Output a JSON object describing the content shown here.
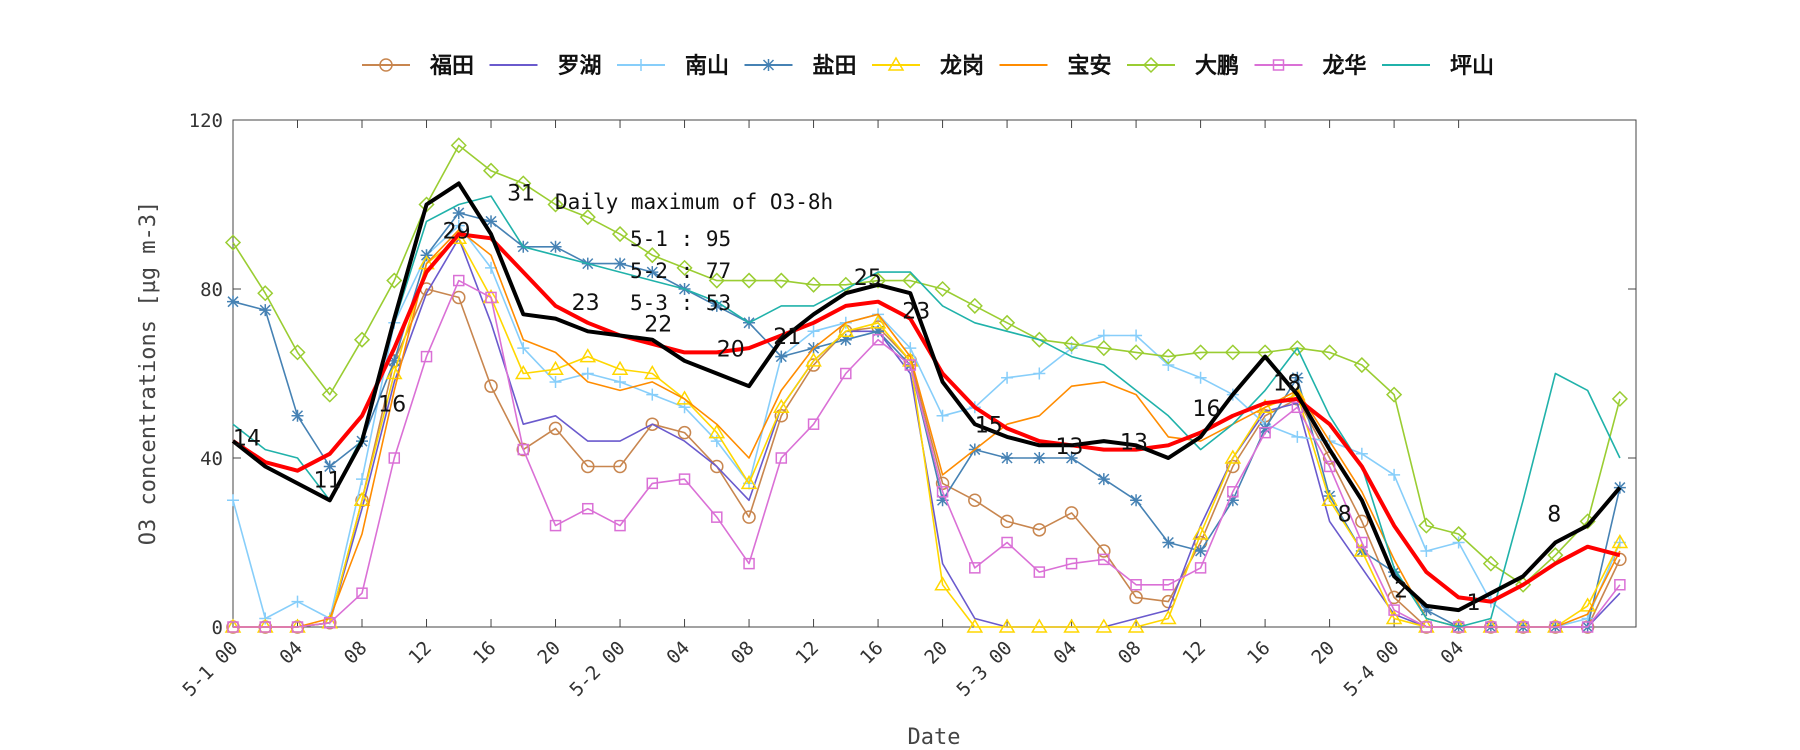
{
  "chart_data": {
    "type": "line",
    "xlabel": "Date",
    "ylabel": "O3 concentrations [µg m-3]",
    "ylim": [
      0,
      120
    ],
    "yticks": [
      0,
      40,
      80,
      120
    ],
    "x_hours": [
      0,
      2,
      4,
      6,
      8,
      10,
      12,
      14,
      16,
      18,
      20,
      22,
      24,
      26,
      28,
      30,
      32,
      34,
      36,
      38,
      40,
      42,
      44,
      46,
      48,
      50,
      52,
      54,
      56,
      58,
      60,
      62,
      64,
      66,
      68,
      70,
      72,
      74,
      76,
      78,
      80,
      82,
      84,
      86
    ],
    "xtick_labels": [
      "5-1 00",
      "04",
      "08",
      "12",
      "16",
      "20",
      "5-2 00",
      "04",
      "08",
      "12",
      "16",
      "20",
      "5-3 00",
      "04",
      "08",
      "12",
      "16",
      "20",
      "5-4 00",
      "04"
    ],
    "grid": false,
    "legend_position": "top",
    "annotation": {
      "title": "Daily maximum of O3-8h",
      "lines": [
        "5-1 : 95",
        "5-2 : 77",
        "5-3 : 53"
      ]
    },
    "point_labels": [
      {
        "x": 0,
        "y": 43,
        "text": "14"
      },
      {
        "x": 5,
        "y": 33,
        "text": "11"
      },
      {
        "x": 9,
        "y": 51,
        "text": "16"
      },
      {
        "x": 13,
        "y": 92,
        "text": "29"
      },
      {
        "x": 17,
        "y": 101,
        "text": "31"
      },
      {
        "x": 21,
        "y": 75,
        "text": "23"
      },
      {
        "x": 25.5,
        "y": 70,
        "text": "22"
      },
      {
        "x": 30,
        "y": 64,
        "text": "20"
      },
      {
        "x": 33.5,
        "y": 67,
        "text": "21"
      },
      {
        "x": 38.5,
        "y": 81,
        "text": "25"
      },
      {
        "x": 41.5,
        "y": 73,
        "text": "23"
      },
      {
        "x": 46,
        "y": 46,
        "text": "15"
      },
      {
        "x": 51,
        "y": 41,
        "text": "13"
      },
      {
        "x": 55,
        "y": 42,
        "text": "13"
      },
      {
        "x": 59.5,
        "y": 50,
        "text": "16"
      },
      {
        "x": 64.5,
        "y": 56,
        "text": "18"
      },
      {
        "x": 68.5,
        "y": 25,
        "text": "8"
      },
      {
        "x": 72,
        "y": 7,
        "text": "2"
      },
      {
        "x": 76.5,
        "y": 4,
        "text": "1"
      },
      {
        "x": 81.5,
        "y": 25,
        "text": "8"
      }
    ],
    "series": [
      {
        "name": "福田",
        "color": "#c8864f",
        "marker": "circle",
        "values": [
          0,
          0,
          0,
          1,
          30,
          63,
          80,
          78,
          57,
          42,
          47,
          38,
          38,
          48,
          46,
          38,
          26,
          50,
          62,
          70,
          71,
          63,
          34,
          30,
          25,
          23,
          27,
          18,
          7,
          6,
          20,
          38,
          50,
          54,
          40,
          25,
          7,
          0,
          0,
          0,
          0,
          0,
          0,
          16
        ]
      },
      {
        "name": "罗湖",
        "color": "#6a5acd",
        "marker": "none",
        "values": [
          0,
          0,
          0,
          1,
          28,
          58,
          79,
          92,
          72,
          48,
          50,
          44,
          44,
          48,
          44,
          38,
          30,
          52,
          63,
          70,
          70,
          60,
          15,
          2,
          0,
          0,
          0,
          0,
          2,
          4,
          24,
          40,
          51,
          53,
          25,
          14,
          3,
          0,
          0,
          0,
          0,
          0,
          0,
          8
        ]
      },
      {
        "name": "南山",
        "color": "#87cefa",
        "marker": "plus",
        "values": [
          30,
          2,
          6,
          2,
          35,
          72,
          88,
          95,
          85,
          66,
          58,
          60,
          58,
          55,
          52,
          44,
          34,
          64,
          70,
          72,
          74,
          66,
          50,
          52,
          59,
          60,
          66,
          69,
          69,
          62,
          59,
          55,
          48,
          45,
          44,
          41,
          36,
          18,
          20,
          6,
          0,
          0,
          2,
          20
        ]
      },
      {
        "name": "盐田",
        "color": "#4682b4",
        "marker": "star",
        "values": [
          77,
          75,
          50,
          38,
          44,
          63,
          88,
          98,
          96,
          90,
          90,
          86,
          86,
          84,
          80,
          76,
          72,
          64,
          66,
          68,
          70,
          62,
          30,
          42,
          40,
          40,
          40,
          35,
          30,
          20,
          18,
          30,
          47,
          59,
          31,
          18,
          13,
          4,
          0,
          0,
          0,
          0,
          0,
          33
        ]
      },
      {
        "name": "龙岗",
        "color": "#ffd700",
        "marker": "triangle",
        "values": [
          0,
          0,
          0,
          1,
          30,
          60,
          86,
          92,
          78,
          60,
          61,
          64,
          61,
          60,
          54,
          46,
          34,
          52,
          63,
          70,
          72,
          63,
          10,
          0,
          0,
          0,
          0,
          0,
          0,
          2,
          22,
          40,
          52,
          55,
          30,
          18,
          2,
          0,
          0,
          0,
          0,
          0,
          5,
          20
        ]
      },
      {
        "name": "宝安",
        "color": "#ff8c00",
        "marker": "none",
        "values": [
          0,
          0,
          0,
          2,
          22,
          56,
          86,
          94,
          88,
          68,
          65,
          58,
          56,
          58,
          54,
          48,
          40,
          56,
          66,
          72,
          74,
          64,
          36,
          42,
          48,
          50,
          57,
          58,
          55,
          45,
          44,
          48,
          52,
          56,
          44,
          32,
          16,
          2,
          0,
          0,
          0,
          0,
          3,
          18
        ]
      },
      {
        "name": "大鹏",
        "color": "#9acd32",
        "marker": "diamond",
        "values": [
          91,
          79,
          65,
          55,
          68,
          82,
          100,
          114,
          108,
          105,
          100,
          97,
          93,
          88,
          85,
          82,
          82,
          82,
          81,
          81,
          82,
          82,
          80,
          76,
          72,
          68,
          67,
          66,
          65,
          64,
          65,
          65,
          65,
          66,
          65,
          62,
          55,
          24,
          22,
          15,
          10,
          17,
          25,
          54
        ]
      },
      {
        "name": "龙华",
        "color": "#da70d6",
        "marker": "square",
        "values": [
          0,
          0,
          0,
          1,
          8,
          40,
          64,
          82,
          78,
          42,
          24,
          28,
          24,
          34,
          35,
          26,
          15,
          40,
          48,
          60,
          68,
          62,
          32,
          14,
          20,
          13,
          15,
          16,
          10,
          10,
          14,
          32,
          46,
          52,
          38,
          20,
          4,
          0,
          0,
          0,
          0,
          0,
          0,
          10
        ]
      },
      {
        "name": "坪山",
        "color": "#20b2aa",
        "marker": "none",
        "values": [
          48,
          42,
          40,
          30,
          45,
          72,
          96,
          100,
          102,
          90,
          88,
          86,
          84,
          82,
          80,
          77,
          72,
          76,
          76,
          80,
          84,
          84,
          76,
          72,
          70,
          68,
          64,
          62,
          56,
          50,
          42,
          48,
          56,
          66,
          50,
          38,
          14,
          2,
          0,
          2,
          30,
          60,
          56,
          40
        ]
      },
      {
        "name": "daily_max_o3_8h",
        "color": "#ff0000",
        "marker": "none",
        "hide_in_legend": true,
        "width": 4,
        "values": [
          44,
          39,
          37,
          41,
          50,
          66,
          84,
          93,
          92,
          84,
          76,
          72,
          69,
          67,
          65,
          65,
          66,
          69,
          72,
          76,
          77,
          73,
          60,
          52,
          47,
          44,
          43,
          42,
          42,
          43,
          46,
          50,
          53,
          54,
          48,
          38,
          24,
          13,
          7,
          6,
          10,
          15,
          19,
          17
        ]
      },
      {
        "name": "average",
        "color": "#000000",
        "marker": "none",
        "hide_in_legend": true,
        "width": 4,
        "values": [
          44,
          38,
          34,
          30,
          44,
          73,
          100,
          105,
          93,
          74,
          73,
          70,
          69,
          68,
          63,
          60,
          57,
          68,
          74,
          79,
          81,
          79,
          58,
          48,
          45,
          43,
          43,
          44,
          43,
          40,
          45,
          55,
          64,
          55,
          42,
          30,
          12,
          5,
          4,
          8,
          12,
          20,
          24,
          33
        ]
      }
    ]
  }
}
